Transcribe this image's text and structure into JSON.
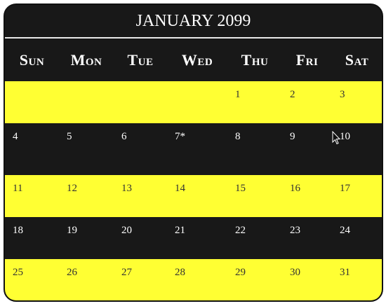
{
  "calendar": {
    "title": "JANUARY 2099",
    "weekdays": [
      "Sun",
      "Mon",
      "Tue",
      "Wed",
      "Thu",
      "Fri",
      "Sat"
    ],
    "weeks": [
      [
        "",
        "",
        "",
        "",
        "1",
        "2",
        "3"
      ],
      [
        "4",
        "5",
        "6",
        "7*",
        "8",
        "9",
        "10"
      ],
      [
        "11",
        "12",
        "13",
        "14",
        "15",
        "16",
        "17"
      ],
      [
        "18",
        "19",
        "20",
        "21",
        "22",
        "23",
        "24"
      ],
      [
        "25",
        "26",
        "27",
        "28",
        "29",
        "30",
        "31"
      ]
    ]
  },
  "colors": {
    "dark_row": "#181818",
    "light_row": "#ffff33"
  },
  "icons": {
    "pointer": "mouse-pointer-icon"
  }
}
